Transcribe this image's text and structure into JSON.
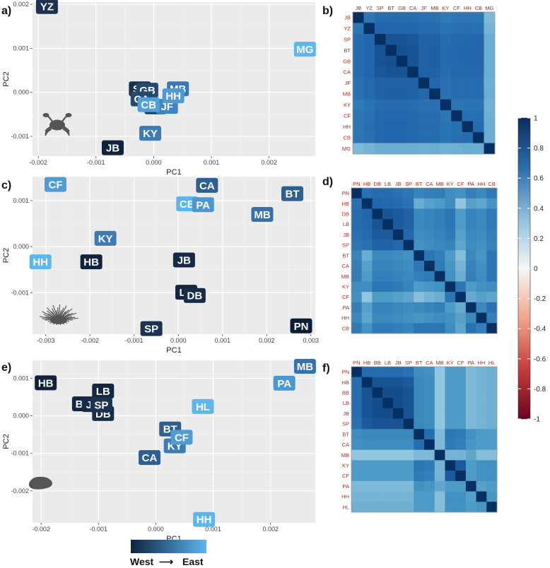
{
  "panel_labels": [
    "a)",
    "b)",
    "c)",
    "d)",
    "e)",
    "f)"
  ],
  "gradient_legend": {
    "left_label": "West",
    "right_label": "East",
    "arrow": "⟶",
    "colors": [
      "#0e2240",
      "#5cb6ef"
    ]
  },
  "colorbar": {
    "ticks": [
      "1",
      "0.8",
      "0.6",
      "0.4",
      "0.2",
      "0",
      "-0.2",
      "-0.4",
      "-0.6",
      "-0.8",
      "-1"
    ],
    "colors": [
      "#0c2d5c",
      "#2c6fae",
      "#8ec0dc",
      "#f7f7f7",
      "#f2a488",
      "#c53d3b",
      "#6b0420"
    ]
  },
  "chart_data": [
    {
      "type": "scatter",
      "panel": "a)",
      "icon": "crab-icon",
      "xlabel": "PC1",
      "ylabel": "PC2",
      "xlim": [
        -0.0021,
        0.0028
      ],
      "ylim": [
        -0.00145,
        0.00205
      ],
      "xticks": [
        -0.002,
        -0.001,
        0.0,
        0.001,
        0.002
      ],
      "xtick_labels": [
        "-0.002",
        "-0.001",
        "0.000",
        "0.001",
        "0.002"
      ],
      "yticks": [
        -0.001,
        0.0,
        0.001,
        0.002
      ],
      "ytick_labels": [
        "-0.001",
        "0.000",
        "0.001",
        "0.002"
      ],
      "points": [
        {
          "label": "YZ",
          "x": -0.00185,
          "y": 0.00195,
          "color": "#1b3350"
        },
        {
          "label": "MG",
          "x": 0.00262,
          "y": 0.00098,
          "color": "#5cb6ef"
        },
        {
          "label": "JB",
          "x": -0.00071,
          "y": -0.00126,
          "color": "#0f233e"
        },
        {
          "label": "KY",
          "x": -6e-05,
          "y": -0.00093,
          "color": "#3d7ab6"
        },
        {
          "label": "SP",
          "x": -0.00024,
          "y": 8e-05,
          "color": "#193250"
        },
        {
          "label": "BT",
          "x": 3e-05,
          "y": -0.00033,
          "color": "#203e60"
        },
        {
          "label": "GB",
          "x": -0.00011,
          "y": 5e-05,
          "color": "#254a72"
        },
        {
          "label": "MB",
          "x": 0.00042,
          "y": 8e-05,
          "color": "#3777ba"
        },
        {
          "label": "CA",
          "x": -0.00021,
          "y": -0.00015,
          "color": "#244870"
        },
        {
          "label": "JF",
          "x": 0.00023,
          "y": -0.00032,
          "color": "#3f85c6"
        },
        {
          "label": "HH",
          "x": 0.00034,
          "y": -8e-05,
          "color": "#4d9bd6"
        },
        {
          "label": "CB",
          "x": -9e-05,
          "y": -0.00028,
          "color": "#4fa0db"
        }
      ]
    },
    {
      "type": "scatter",
      "panel": "c)",
      "icon": "urchin-icon",
      "xlabel": "PC1",
      "ylabel": "PC2",
      "xlim": [
        -0.0033,
        0.0031
      ],
      "ylim": [
        -0.0019,
        0.00152
      ],
      "xticks": [
        -0.003,
        -0.002,
        -0.001,
        0.0,
        0.001,
        0.002,
        0.003
      ],
      "xtick_labels": [
        "-0.003",
        "-0.002",
        "-0.001",
        "0.000",
        "0.001",
        "0.002",
        "0.003"
      ],
      "yticks": [
        -0.001,
        0.0,
        0.001
      ],
      "ytick_labels": [
        "-0.001",
        "0.000",
        "0.001"
      ],
      "points": [
        {
          "label": "CF",
          "x": -0.00278,
          "y": 0.00135,
          "color": "#4e9bd5"
        },
        {
          "label": "CA",
          "x": 0.00065,
          "y": 0.00133,
          "color": "#2d5f92"
        },
        {
          "label": "BT",
          "x": 0.00258,
          "y": 0.00115,
          "color": "#2f5f90"
        },
        {
          "label": "CB",
          "x": 0.0002,
          "y": 0.00093,
          "color": "#5cb6ef"
        },
        {
          "label": "PA",
          "x": 0.00056,
          "y": 0.00091,
          "color": "#4a97d2"
        },
        {
          "label": "MB",
          "x": 0.0019,
          "y": 0.0007,
          "color": "#3572ae"
        },
        {
          "label": "KY",
          "x": -0.00165,
          "y": 0.00018,
          "color": "#3d7ab6"
        },
        {
          "label": "HH",
          "x": -0.00312,
          "y": -0.00033,
          "color": "#5cb6ef"
        },
        {
          "label": "HB",
          "x": -0.00197,
          "y": -0.00033,
          "color": "#0f233e"
        },
        {
          "label": "JB",
          "x": 0.00013,
          "y": -0.00029,
          "color": "#152a45"
        },
        {
          "label": "LB",
          "x": 0.00018,
          "y": -0.00099,
          "color": "#13273f"
        },
        {
          "label": "DB",
          "x": 0.00037,
          "y": -0.00106,
          "color": "#172c47"
        },
        {
          "label": "SP",
          "x": -0.00061,
          "y": -0.00178,
          "color": "#1b3350"
        },
        {
          "label": "PN",
          "x": 0.00278,
          "y": -0.00172,
          "color": "#0c1e36"
        }
      ]
    },
    {
      "type": "scatter",
      "panel": "e)",
      "icon": "oyster-icon",
      "xlabel": "PC1",
      "ylabel": "PC2",
      "xlim": [
        -0.00215,
        0.00278
      ],
      "ylim": [
        -0.00285,
        0.00148
      ],
      "xticks": [
        -0.002,
        -0.001,
        0.0,
        0.001,
        0.002
      ],
      "xtick_labels": [
        "-0.002",
        "-0.001",
        "0.000",
        "0.001",
        "0.002"
      ],
      "yticks": [
        -0.002,
        -0.001,
        0.0,
        0.001
      ],
      "ytick_labels": [
        "-0.002",
        "-0.001",
        "0.000",
        "0.001"
      ],
      "points": [
        {
          "label": "MB",
          "x": 0.0026,
          "y": 0.00132,
          "color": "#3572ae"
        },
        {
          "label": "HB",
          "x": -0.00192,
          "y": 0.00088,
          "color": "#0f233e"
        },
        {
          "label": "PA",
          "x": 0.00224,
          "y": 0.00087,
          "color": "#4a97d2"
        },
        {
          "label": "LB",
          "x": -0.00092,
          "y": 0.00066,
          "color": "#13273f"
        },
        {
          "label": "HL",
          "x": 0.00082,
          "y": 0.00025,
          "color": "#5cb6ef"
        },
        {
          "label": "DB",
          "x": -0.00092,
          "y": 6e-05,
          "color": "#172c47"
        },
        {
          "label": "BB",
          "x": -0.00127,
          "y": 0.00032,
          "color": "#132842"
        },
        {
          "label": "JB",
          "x": -0.0011,
          "y": 0.0003,
          "color": "#152a45"
        },
        {
          "label": "SP",
          "x": -0.00095,
          "y": 0.00029,
          "color": "#1b3350"
        },
        {
          "label": "BT",
          "x": 0.00025,
          "y": -0.00035,
          "color": "#2f5f90"
        },
        {
          "label": "KY",
          "x": 0.00033,
          "y": -0.0008,
          "color": "#3d7ab6"
        },
        {
          "label": "CF",
          "x": 0.00045,
          "y": -0.00057,
          "color": "#4e9bd5"
        },
        {
          "label": "CA",
          "x": -0.00011,
          "y": -0.00111,
          "color": "#2d5f92"
        },
        {
          "label": "HH",
          "x": 0.00084,
          "y": -0.00276,
          "color": "#5cb6ef"
        }
      ]
    },
    {
      "type": "heatmap",
      "panel": "b)",
      "labels": [
        "JB",
        "YZ",
        "SP",
        "BT",
        "GB",
        "CA",
        "JF",
        "MB",
        "KY",
        "CF",
        "HH",
        "CB",
        "MG"
      ],
      "matrix": [
        [
          1.0,
          0.78,
          0.82,
          0.82,
          0.82,
          0.82,
          0.8,
          0.8,
          0.76,
          0.78,
          0.78,
          0.78,
          0.5
        ],
        [
          0.78,
          1.0,
          0.85,
          0.85,
          0.85,
          0.85,
          0.83,
          0.83,
          0.79,
          0.8,
          0.81,
          0.8,
          0.52
        ],
        [
          0.82,
          0.85,
          1.0,
          0.9,
          0.9,
          0.89,
          0.86,
          0.86,
          0.82,
          0.84,
          0.84,
          0.84,
          0.55
        ],
        [
          0.82,
          0.85,
          0.9,
          1.0,
          0.91,
          0.9,
          0.86,
          0.87,
          0.83,
          0.84,
          0.85,
          0.85,
          0.55
        ],
        [
          0.82,
          0.85,
          0.9,
          0.91,
          1.0,
          0.9,
          0.86,
          0.87,
          0.83,
          0.84,
          0.85,
          0.85,
          0.55
        ],
        [
          0.82,
          0.85,
          0.89,
          0.9,
          0.9,
          1.0,
          0.86,
          0.86,
          0.82,
          0.84,
          0.84,
          0.84,
          0.55
        ],
        [
          0.8,
          0.83,
          0.86,
          0.86,
          0.86,
          0.86,
          1.0,
          0.84,
          0.8,
          0.82,
          0.82,
          0.82,
          0.54
        ],
        [
          0.8,
          0.83,
          0.86,
          0.87,
          0.87,
          0.86,
          0.84,
          1.0,
          0.8,
          0.82,
          0.82,
          0.82,
          0.55
        ],
        [
          0.76,
          0.79,
          0.82,
          0.83,
          0.83,
          0.82,
          0.8,
          0.8,
          1.0,
          0.78,
          0.79,
          0.79,
          0.53
        ],
        [
          0.78,
          0.8,
          0.84,
          0.84,
          0.84,
          0.84,
          0.82,
          0.82,
          0.78,
          1.0,
          0.81,
          0.81,
          0.54
        ],
        [
          0.78,
          0.81,
          0.84,
          0.85,
          0.85,
          0.84,
          0.82,
          0.82,
          0.79,
          0.81,
          1.0,
          0.82,
          0.55
        ],
        [
          0.78,
          0.8,
          0.84,
          0.85,
          0.85,
          0.84,
          0.82,
          0.82,
          0.79,
          0.81,
          0.82,
          1.0,
          0.55
        ],
        [
          0.5,
          0.52,
          0.55,
          0.55,
          0.55,
          0.55,
          0.54,
          0.55,
          0.53,
          0.54,
          0.55,
          0.55,
          1.0
        ]
      ]
    },
    {
      "type": "heatmap",
      "panel": "d)",
      "labels": [
        "PN",
        "HB",
        "DB",
        "LB",
        "JB",
        "SP",
        "BT",
        "CA",
        "MB",
        "KY",
        "CF",
        "PA",
        "HH",
        "CB"
      ],
      "matrix": [
        [
          1.0,
          0.8,
          0.82,
          0.82,
          0.8,
          0.78,
          0.72,
          0.74,
          0.75,
          0.68,
          0.66,
          0.74,
          0.7,
          0.76
        ],
        [
          0.8,
          1.0,
          0.85,
          0.84,
          0.83,
          0.8,
          0.55,
          0.6,
          0.62,
          0.68,
          0.45,
          0.6,
          0.58,
          0.65
        ],
        [
          0.82,
          0.85,
          1.0,
          0.9,
          0.88,
          0.86,
          0.7,
          0.72,
          0.74,
          0.78,
          0.62,
          0.72,
          0.7,
          0.76
        ],
        [
          0.82,
          0.84,
          0.9,
          1.0,
          0.88,
          0.86,
          0.7,
          0.72,
          0.74,
          0.78,
          0.62,
          0.72,
          0.7,
          0.76
        ],
        [
          0.8,
          0.83,
          0.88,
          0.88,
          1.0,
          0.84,
          0.68,
          0.7,
          0.72,
          0.76,
          0.6,
          0.7,
          0.68,
          0.74
        ],
        [
          0.78,
          0.8,
          0.86,
          0.86,
          0.84,
          1.0,
          0.66,
          0.68,
          0.7,
          0.72,
          0.58,
          0.68,
          0.66,
          0.72
        ],
        [
          0.72,
          0.55,
          0.7,
          0.7,
          0.68,
          0.66,
          1.0,
          0.78,
          0.74,
          0.62,
          0.48,
          0.7,
          0.64,
          0.78
        ],
        [
          0.74,
          0.6,
          0.72,
          0.72,
          0.7,
          0.68,
          0.78,
          1.0,
          0.76,
          0.64,
          0.52,
          0.72,
          0.66,
          0.78
        ],
        [
          0.75,
          0.62,
          0.74,
          0.74,
          0.72,
          0.7,
          0.74,
          0.76,
          1.0,
          0.66,
          0.55,
          0.74,
          0.68,
          0.78
        ],
        [
          0.68,
          0.68,
          0.78,
          0.78,
          0.76,
          0.72,
          0.62,
          0.64,
          0.66,
          1.0,
          0.78,
          0.62,
          0.66,
          0.68
        ],
        [
          0.66,
          0.45,
          0.62,
          0.62,
          0.6,
          0.58,
          0.48,
          0.52,
          0.55,
          0.78,
          1.0,
          0.56,
          0.6,
          0.58
        ],
        [
          0.74,
          0.6,
          0.72,
          0.72,
          0.7,
          0.68,
          0.7,
          0.72,
          0.74,
          0.62,
          0.56,
          1.0,
          0.7,
          0.8
        ],
        [
          0.7,
          0.58,
          0.7,
          0.7,
          0.68,
          0.66,
          0.64,
          0.66,
          0.68,
          0.66,
          0.6,
          0.7,
          1.0,
          0.74
        ],
        [
          0.76,
          0.65,
          0.76,
          0.76,
          0.74,
          0.72,
          0.78,
          0.78,
          0.78,
          0.68,
          0.58,
          0.8,
          0.74,
          1.0
        ]
      ]
    },
    {
      "type": "heatmap",
      "panel": "f)",
      "labels": [
        "PN",
        "HB",
        "BB",
        "LB",
        "JB",
        "SP",
        "BT",
        "CA",
        "MB",
        "KY",
        "CF",
        "PA",
        "HH",
        "HL"
      ],
      "matrix": [
        [
          1.0,
          0.82,
          0.82,
          0.82,
          0.82,
          0.8,
          0.68,
          0.66,
          0.45,
          0.62,
          0.62,
          0.5,
          0.52,
          0.54
        ],
        [
          0.82,
          1.0,
          0.9,
          0.9,
          0.9,
          0.88,
          0.7,
          0.68,
          0.45,
          0.62,
          0.62,
          0.5,
          0.52,
          0.54
        ],
        [
          0.82,
          0.9,
          1.0,
          0.92,
          0.92,
          0.9,
          0.7,
          0.68,
          0.45,
          0.62,
          0.62,
          0.5,
          0.52,
          0.54
        ],
        [
          0.82,
          0.9,
          0.92,
          1.0,
          0.92,
          0.9,
          0.7,
          0.68,
          0.45,
          0.62,
          0.62,
          0.5,
          0.52,
          0.54
        ],
        [
          0.82,
          0.9,
          0.92,
          0.92,
          1.0,
          0.9,
          0.7,
          0.68,
          0.45,
          0.62,
          0.62,
          0.5,
          0.52,
          0.54
        ],
        [
          0.8,
          0.88,
          0.9,
          0.9,
          0.9,
          1.0,
          0.7,
          0.68,
          0.45,
          0.62,
          0.62,
          0.5,
          0.52,
          0.54
        ],
        [
          0.68,
          0.7,
          0.7,
          0.7,
          0.7,
          0.7,
          1.0,
          0.82,
          0.5,
          0.78,
          0.76,
          0.66,
          0.62,
          0.62
        ],
        [
          0.66,
          0.68,
          0.68,
          0.68,
          0.68,
          0.68,
          0.82,
          1.0,
          0.5,
          0.76,
          0.74,
          0.64,
          0.62,
          0.62
        ],
        [
          0.45,
          0.45,
          0.45,
          0.45,
          0.45,
          0.45,
          0.5,
          0.5,
          1.0,
          0.52,
          0.52,
          0.58,
          0.48,
          0.48
        ],
        [
          0.62,
          0.62,
          0.62,
          0.62,
          0.62,
          0.62,
          0.78,
          0.76,
          0.52,
          1.0,
          0.88,
          0.62,
          0.66,
          0.66
        ],
        [
          0.62,
          0.62,
          0.62,
          0.62,
          0.62,
          0.62,
          0.76,
          0.74,
          0.52,
          0.88,
          1.0,
          0.62,
          0.66,
          0.66
        ],
        [
          0.5,
          0.5,
          0.5,
          0.5,
          0.5,
          0.5,
          0.66,
          0.64,
          0.58,
          0.62,
          0.62,
          1.0,
          0.6,
          0.62
        ],
        [
          0.52,
          0.52,
          0.52,
          0.52,
          0.52,
          0.52,
          0.62,
          0.62,
          0.48,
          0.66,
          0.66,
          0.6,
          1.0,
          0.64
        ],
        [
          0.54,
          0.54,
          0.54,
          0.54,
          0.54,
          0.54,
          0.62,
          0.62,
          0.48,
          0.66,
          0.66,
          0.62,
          0.64,
          1.0
        ]
      ]
    }
  ]
}
